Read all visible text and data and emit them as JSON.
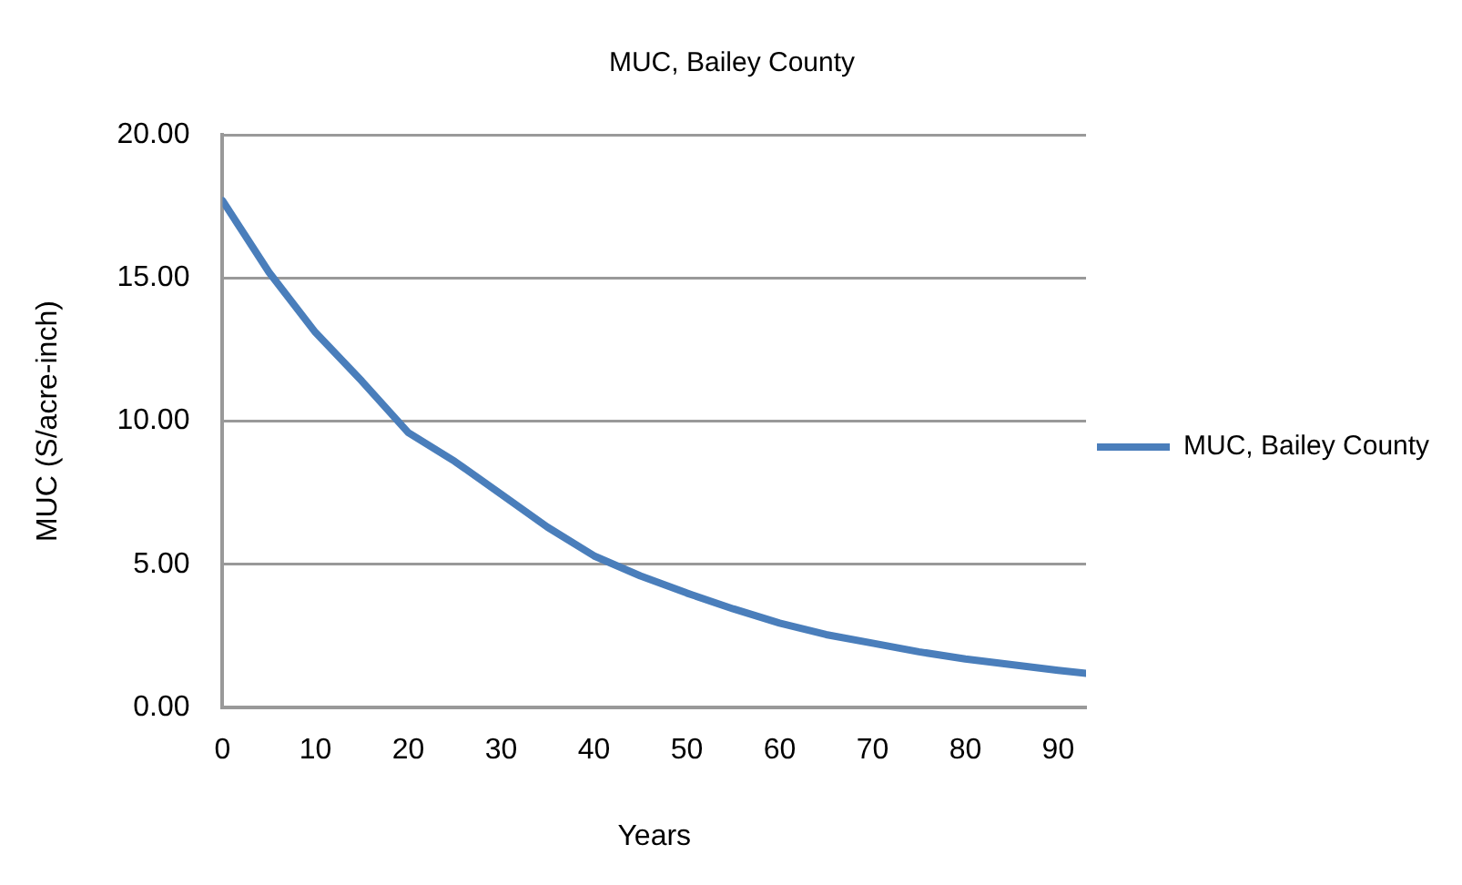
{
  "chart_data": {
    "type": "line",
    "title": "MUC, Bailey County",
    "xlabel": "Years",
    "ylabel": "MUC (S/acre-inch)",
    "x": [
      0,
      5,
      10,
      15,
      20,
      25,
      30,
      35,
      40,
      45,
      50,
      55,
      60,
      65,
      70,
      75,
      80,
      85,
      90,
      93
    ],
    "series": [
      {
        "name": "MUC, Bailey County",
        "color": "#4a7ebb",
        "values": [
          17.7,
          15.2,
          13.1,
          11.4,
          9.6,
          8.6,
          7.45,
          6.3,
          5.3,
          4.6,
          4.0,
          3.45,
          2.95,
          2.55,
          2.25,
          1.95,
          1.7,
          1.5,
          1.3,
          1.2
        ]
      }
    ],
    "xlim": [
      0,
      93
    ],
    "xticks": [
      0,
      10,
      20,
      30,
      40,
      50,
      60,
      70,
      80,
      90
    ],
    "ylim": [
      0,
      20
    ],
    "yticks": [
      {
        "value": 0,
        "label": "0.00"
      },
      {
        "value": 5,
        "label": "5.00"
      },
      {
        "value": 10,
        "label": "10.00"
      },
      {
        "value": 15,
        "label": "15.00"
      },
      {
        "value": 20,
        "label": "20.00"
      }
    ],
    "grid": "y",
    "legend": "right",
    "marker": "none",
    "line_style": "solid"
  }
}
